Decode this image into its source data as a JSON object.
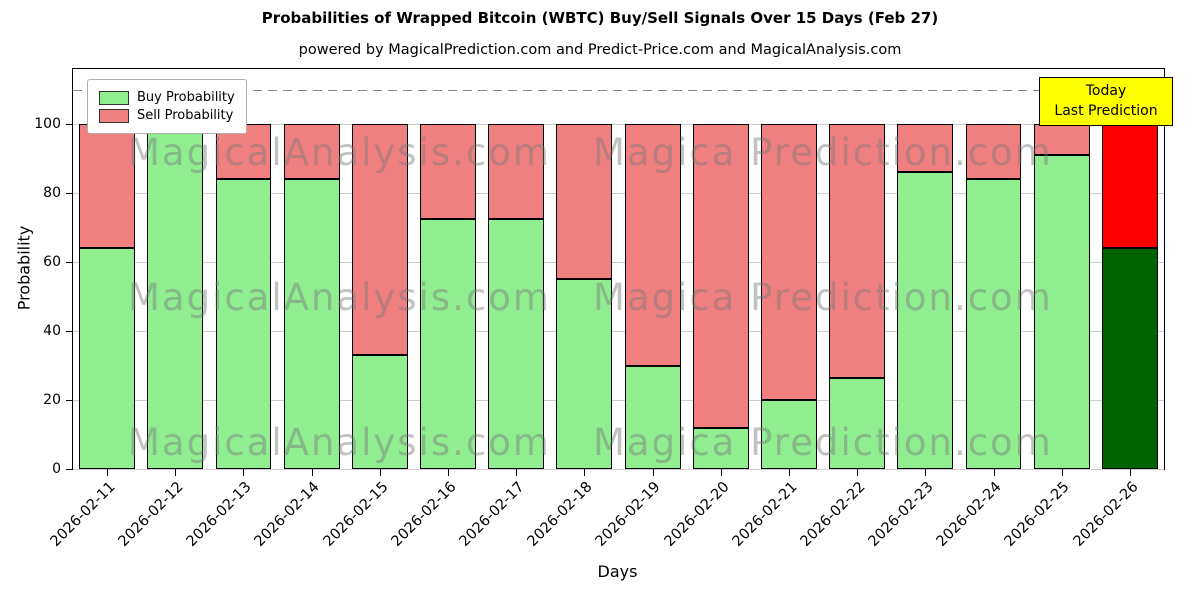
{
  "figure": {
    "title": "Probabilities of Wrapped Bitcoin (WBTC) Buy/Sell Signals Over 15 Days (Feb 27)",
    "subtitle": "powered by MagicalPrediction.com and Predict-Price.com and MagicalAnalysis.com"
  },
  "axes": {
    "xlabel": "Days",
    "ylabel": "Probability"
  },
  "legend": {
    "items": [
      {
        "label": "Buy Probability",
        "color": "#90ee90"
      },
      {
        "label": "Sell Probability",
        "color": "#f08080"
      }
    ]
  },
  "annotation": {
    "line1": "Today",
    "line2": "Last Prediction",
    "bg": "#ffff00"
  },
  "watermarks": {
    "left": "MagicalAnalysis.com",
    "right": "Magica Prediction.com"
  },
  "chart_data": {
    "type": "bar",
    "stacked": true,
    "title": "Probabilities of Wrapped Bitcoin (WBTC) Buy/Sell Signals Over 15 Days (Feb 27)",
    "xlabel": "Days",
    "ylabel": "Probability",
    "categories": [
      "2026-02-11",
      "2026-02-12",
      "2026-02-13",
      "2026-02-14",
      "2026-02-15",
      "2026-02-16",
      "2026-02-17",
      "2026-02-18",
      "2026-02-19",
      "2026-02-20",
      "2026-02-21",
      "2026-02-22",
      "2026-02-23",
      "2026-02-24",
      "2026-02-25",
      "2026-02-26"
    ],
    "series": [
      {
        "name": "Buy Probability",
        "color": "#90ee90",
        "values": [
          64,
          100,
          84,
          84,
          33,
          72.5,
          72.5,
          55,
          30,
          12,
          20,
          26.5,
          86,
          84,
          91,
          64
        ]
      },
      {
        "name": "Sell Probability",
        "color": "#f08080",
        "values": [
          36,
          0,
          16,
          16,
          67,
          27.5,
          27.5,
          45,
          70,
          88,
          80,
          73.5,
          14,
          16,
          9,
          36
        ]
      }
    ],
    "today_index": 15,
    "today_colors": {
      "buy": "#006400",
      "sell": "#ff0000"
    },
    "ylim": [
      0,
      116
    ],
    "yticks": [
      0,
      20,
      40,
      60,
      80,
      100
    ],
    "dashed_line_y": 110,
    "grid": true,
    "legend_position": "upper left",
    "bar_edge_color": "#000000"
  }
}
